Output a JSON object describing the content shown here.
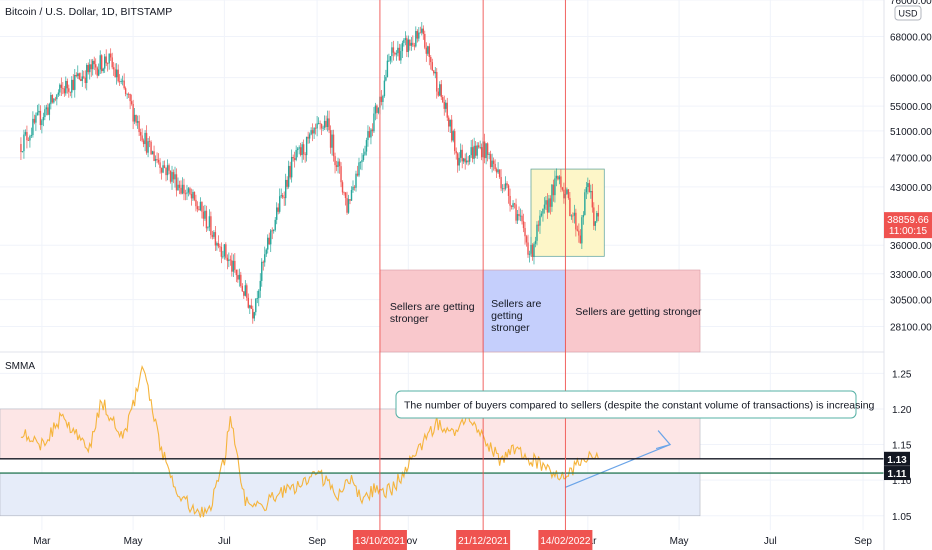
{
  "header": {
    "title": "Bitcoin / U.S. Dollar, 1D, BITSTAMP",
    "currency": "USD"
  },
  "indicator": {
    "name": "SMMA"
  },
  "colors": {
    "up": "#26a69a",
    "down": "#ef5350",
    "smma": "#f5b43c",
    "vline": "#ef5350",
    "price_badge": "#ef5350",
    "level_badge": "#131722",
    "sell_box": "#f9c8cc",
    "buy_box": "#c5cffc",
    "consolidation_box": "#fdf6c8",
    "upper_band": "#fde6e6",
    "lower_band": "#e6ecf9",
    "arrow": "#6aa4e8"
  },
  "chart_data": [
    {
      "type": "candlestick",
      "title": "Bitcoin / U.S. Dollar, 1D, BITSTAMP",
      "x": [
        "2021-02-15",
        "2021-03-15",
        "2021-04-14",
        "2021-05-12",
        "2021-06-15",
        "2021-07-20",
        "2021-08-15",
        "2021-09-07",
        "2021-09-21",
        "2021-10-13",
        "2021-10-20",
        "2021-11-10",
        "2021-12-04",
        "2021-12-21",
        "2022-01-10",
        "2022-01-22",
        "2022-01-24",
        "2022-02-10",
        "2022-02-14",
        "2022-02-24",
        "2022-03-01",
        "2022-03-05",
        "2022-03-08"
      ],
      "y": [
        49000,
        58000,
        63500,
        48000,
        40000,
        29500,
        46000,
        52500,
        40500,
        56000,
        64000,
        68000,
        47000,
        48500,
        41000,
        35000,
        36500,
        44500,
        42000,
        37000,
        44000,
        39000,
        38859.66
      ],
      "xticks": [
        "Mar",
        "May",
        "Jul",
        "Sep",
        "Nov",
        "Mar",
        "May",
        "Jul",
        "Sep"
      ],
      "yticks": [
        "76000.00",
        "68000.00",
        "60000.00",
        "55000.00",
        "51000.00",
        "47000.00",
        "43000.00",
        "36000.00",
        "33000.00",
        "30500.00",
        "28100.00"
      ],
      "yscale": "log",
      "ylim": [
        26000,
        76000
      ],
      "last_price": "38859.66",
      "countdown": "11:00:15",
      "markers": [
        "13/10/2021",
        "21/12/2021",
        "14/02/2022"
      ],
      "annotations": [
        {
          "text": "Sellers are getting stronger",
          "x0": "2021-10-13",
          "x1": "2021-12-21",
          "y0": 26000,
          "y1": 34000
        },
        {
          "text": "Sellers are getting stronger",
          "x0": "2021-12-21",
          "x1": "2022-02-14",
          "y0": 26000,
          "y1": 34000
        },
        {
          "text": "Sellers are getting stronger",
          "x0": "2022-02-14",
          "x1": "2022-05-15",
          "y0": 26000,
          "y1": 34000
        }
      ],
      "consolidation": {
        "x0": "2022-01-22",
        "x1": "2022-03-12",
        "y0": 34800,
        "y1": 45400
      }
    },
    {
      "type": "line",
      "series": [
        {
          "name": "SMMA",
          "values": [
            1.17,
            1.15,
            1.19,
            1.14,
            1.21,
            1.16,
            1.26,
            1.14,
            1.08,
            1.06,
            1.05,
            1.13,
            1.19,
            1.07,
            1.06,
            1.08,
            1.09,
            1.11,
            1.08,
            1.1,
            1.07,
            1.09,
            1.08,
            1.09,
            1.12,
            1.15,
            1.18,
            1.17,
            1.19,
            1.16,
            1.13,
            1.14,
            1.13,
            1.12,
            1.1,
            1.13,
            1.14
          ]
        }
      ],
      "x": [
        "2021-02-15",
        "2021-03-01",
        "2021-03-15",
        "2021-04-01",
        "2021-04-10",
        "2021-04-25",
        "2021-05-08",
        "2021-05-20",
        "2021-06-01",
        "2021-06-10",
        "2021-06-20",
        "2021-07-01",
        "2021-07-05",
        "2021-07-15",
        "2021-07-25",
        "2021-08-05",
        "2021-08-20",
        "2021-09-01",
        "2021-09-15",
        "2021-09-25",
        "2021-10-01",
        "2021-10-10",
        "2021-10-15",
        "2021-10-22",
        "2021-11-01",
        "2021-11-10",
        "2021-11-20",
        "2021-12-01",
        "2021-12-10",
        "2021-12-20",
        "2022-01-01",
        "2022-01-10",
        "2022-01-22",
        "2022-02-01",
        "2022-02-14",
        "2022-02-25",
        "2022-03-08"
      ],
      "yticks": [
        "1.25",
        "1.20",
        "1.15",
        "1.10",
        "1.05"
      ],
      "ylim": [
        1.03,
        1.28
      ],
      "levels": [
        "1.13",
        "1.11"
      ],
      "bands": [
        {
          "y0": 1.13,
          "y1": 1.2
        },
        {
          "y0": 1.05,
          "y1": 1.11
        }
      ],
      "annotation": "The number of buyers compared to sellers (despite the constant volume of transactions) is increasing"
    }
  ]
}
